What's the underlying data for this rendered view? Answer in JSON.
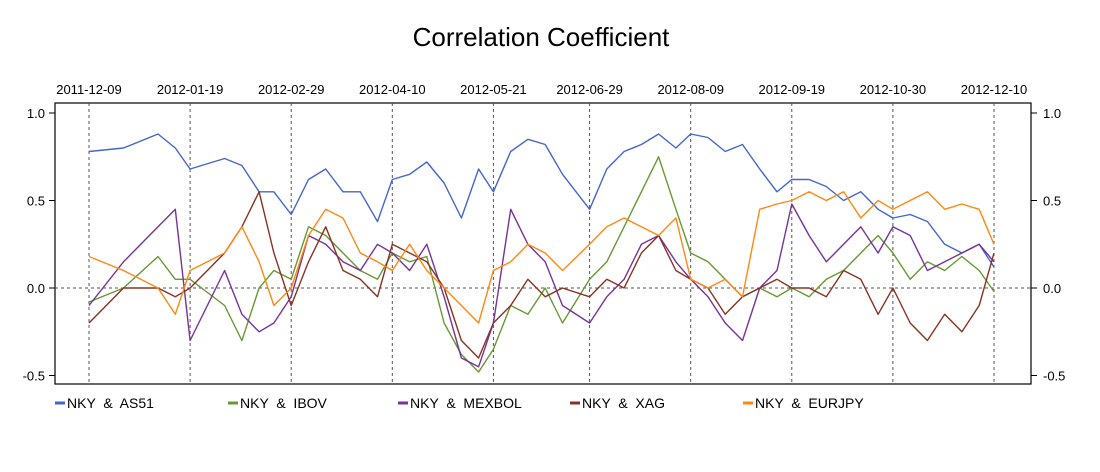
{
  "chart_data": {
    "type": "line",
    "title": "Correlation Coefficient",
    "x_ticks": [
      "2011-12-09",
      "2012-01-19",
      "2012-02-29",
      "2012-04-10",
      "2012-05-21",
      "2012-06-29",
      "2012-08-09",
      "2012-09-19",
      "2012-10-30",
      "2012-12-10"
    ],
    "y_ticks": [
      "1.0",
      "0.5",
      "0.0",
      "-0.5"
    ],
    "xlim": [
      "2011-12-09",
      "2012-12-10"
    ],
    "ylim": [
      -0.55,
      1.03
    ],
    "grid": "dashed vertical lines at date ticks; dashed horizontal line at 0.0",
    "legend_position": "bottom",
    "series": [
      {
        "name": "NKY  &  AS51",
        "color": "#4466cc",
        "points": [
          [
            "2011-12-09",
            0.78
          ],
          [
            "2011-12-23",
            0.8
          ],
          [
            "2012-01-06",
            0.88
          ],
          [
            "2012-01-13",
            0.8
          ],
          [
            "2012-01-19",
            0.68
          ],
          [
            "2012-02-02",
            0.74
          ],
          [
            "2012-02-09",
            0.7
          ],
          [
            "2012-02-16",
            0.55
          ],
          [
            "2012-02-22",
            0.55
          ],
          [
            "2012-02-29",
            0.42
          ],
          [
            "2012-03-07",
            0.62
          ],
          [
            "2012-03-14",
            0.68
          ],
          [
            "2012-03-21",
            0.55
          ],
          [
            "2012-03-28",
            0.55
          ],
          [
            "2012-04-04",
            0.38
          ],
          [
            "2012-04-10",
            0.62
          ],
          [
            "2012-04-17",
            0.65
          ],
          [
            "2012-04-24",
            0.72
          ],
          [
            "2012-05-01",
            0.6
          ],
          [
            "2012-05-08",
            0.4
          ],
          [
            "2012-05-15",
            0.68
          ],
          [
            "2012-05-21",
            0.55
          ],
          [
            "2012-05-28",
            0.78
          ],
          [
            "2012-06-04",
            0.85
          ],
          [
            "2012-06-11",
            0.82
          ],
          [
            "2012-06-18",
            0.65
          ],
          [
            "2012-06-29",
            0.45
          ],
          [
            "2012-07-06",
            0.68
          ],
          [
            "2012-07-13",
            0.78
          ],
          [
            "2012-07-20",
            0.82
          ],
          [
            "2012-07-27",
            0.88
          ],
          [
            "2012-08-03",
            0.8
          ],
          [
            "2012-08-09",
            0.88
          ],
          [
            "2012-08-16",
            0.86
          ],
          [
            "2012-08-23",
            0.78
          ],
          [
            "2012-08-30",
            0.82
          ],
          [
            "2012-09-06",
            0.68
          ],
          [
            "2012-09-13",
            0.55
          ],
          [
            "2012-09-19",
            0.62
          ],
          [
            "2012-09-26",
            0.62
          ],
          [
            "2012-10-03",
            0.58
          ],
          [
            "2012-10-10",
            0.5
          ],
          [
            "2012-10-17",
            0.55
          ],
          [
            "2012-10-24",
            0.45
          ],
          [
            "2012-10-30",
            0.4
          ],
          [
            "2012-11-06",
            0.42
          ],
          [
            "2012-11-13",
            0.38
          ],
          [
            "2012-11-20",
            0.25
          ],
          [
            "2012-11-27",
            0.2
          ],
          [
            "2012-12-04",
            0.25
          ],
          [
            "2012-12-10",
            0.12
          ]
        ]
      },
      {
        "name": "NKY  &  IBOV",
        "color": "#669933",
        "points": [
          [
            "2011-12-09",
            -0.08
          ],
          [
            "2011-12-23",
            0.0
          ],
          [
            "2012-01-06",
            0.18
          ],
          [
            "2012-01-13",
            0.05
          ],
          [
            "2012-01-19",
            0.05
          ],
          [
            "2012-02-02",
            -0.1
          ],
          [
            "2012-02-09",
            -0.3
          ],
          [
            "2012-02-16",
            0.0
          ],
          [
            "2012-02-22",
            0.1
          ],
          [
            "2012-02-29",
            0.05
          ],
          [
            "2012-03-07",
            0.35
          ],
          [
            "2012-03-14",
            0.3
          ],
          [
            "2012-03-21",
            0.2
          ],
          [
            "2012-03-28",
            0.1
          ],
          [
            "2012-04-04",
            0.05
          ],
          [
            "2012-04-10",
            0.2
          ],
          [
            "2012-04-17",
            0.15
          ],
          [
            "2012-04-24",
            0.18
          ],
          [
            "2012-05-01",
            -0.2
          ],
          [
            "2012-05-08",
            -0.38
          ],
          [
            "2012-05-15",
            -0.48
          ],
          [
            "2012-05-21",
            -0.35
          ],
          [
            "2012-05-28",
            -0.1
          ],
          [
            "2012-06-04",
            -0.15
          ],
          [
            "2012-06-11",
            0.0
          ],
          [
            "2012-06-18",
            -0.2
          ],
          [
            "2012-06-29",
            0.05
          ],
          [
            "2012-07-06",
            0.15
          ],
          [
            "2012-07-13",
            0.35
          ],
          [
            "2012-07-20",
            0.55
          ],
          [
            "2012-07-27",
            0.75
          ],
          [
            "2012-08-03",
            0.45
          ],
          [
            "2012-08-09",
            0.2
          ],
          [
            "2012-08-16",
            0.15
          ],
          [
            "2012-08-23",
            0.05
          ],
          [
            "2012-08-30",
            -0.05
          ],
          [
            "2012-09-06",
            0.0
          ],
          [
            "2012-09-13",
            -0.05
          ],
          [
            "2012-09-19",
            0.0
          ],
          [
            "2012-09-26",
            -0.05
          ],
          [
            "2012-10-03",
            0.05
          ],
          [
            "2012-10-10",
            0.1
          ],
          [
            "2012-10-17",
            0.2
          ],
          [
            "2012-10-24",
            0.3
          ],
          [
            "2012-10-30",
            0.2
          ],
          [
            "2012-11-06",
            0.05
          ],
          [
            "2012-11-13",
            0.15
          ],
          [
            "2012-11-20",
            0.1
          ],
          [
            "2012-11-27",
            0.18
          ],
          [
            "2012-12-04",
            0.1
          ],
          [
            "2012-12-10",
            -0.02
          ]
        ]
      },
      {
        "name": "NKY  &  MEXBOL",
        "color": "#773399",
        "points": [
          [
            "2011-12-09",
            -0.1
          ],
          [
            "2011-12-23",
            0.15
          ],
          [
            "2012-01-06",
            0.35
          ],
          [
            "2012-01-13",
            0.45
          ],
          [
            "2012-01-19",
            -0.3
          ],
          [
            "2012-02-02",
            0.1
          ],
          [
            "2012-02-09",
            -0.15
          ],
          [
            "2012-02-16",
            -0.25
          ],
          [
            "2012-02-22",
            -0.2
          ],
          [
            "2012-02-29",
            -0.05
          ],
          [
            "2012-03-07",
            0.3
          ],
          [
            "2012-03-14",
            0.25
          ],
          [
            "2012-03-21",
            0.15
          ],
          [
            "2012-03-28",
            0.1
          ],
          [
            "2012-04-04",
            0.25
          ],
          [
            "2012-04-10",
            0.2
          ],
          [
            "2012-04-17",
            0.1
          ],
          [
            "2012-04-24",
            0.25
          ],
          [
            "2012-05-01",
            -0.05
          ],
          [
            "2012-05-08",
            -0.4
          ],
          [
            "2012-05-15",
            -0.45
          ],
          [
            "2012-05-21",
            -0.2
          ],
          [
            "2012-05-28",
            0.45
          ],
          [
            "2012-06-04",
            0.25
          ],
          [
            "2012-06-11",
            0.15
          ],
          [
            "2012-06-18",
            -0.1
          ],
          [
            "2012-06-29",
            -0.2
          ],
          [
            "2012-07-06",
            -0.05
          ],
          [
            "2012-07-13",
            0.05
          ],
          [
            "2012-07-20",
            0.25
          ],
          [
            "2012-07-27",
            0.3
          ],
          [
            "2012-08-03",
            0.15
          ],
          [
            "2012-08-09",
            0.05
          ],
          [
            "2012-08-16",
            -0.05
          ],
          [
            "2012-08-23",
            -0.2
          ],
          [
            "2012-08-30",
            -0.3
          ],
          [
            "2012-09-06",
            0.0
          ],
          [
            "2012-09-13",
            0.1
          ],
          [
            "2012-09-19",
            0.48
          ],
          [
            "2012-09-26",
            0.3
          ],
          [
            "2012-10-03",
            0.15
          ],
          [
            "2012-10-10",
            0.25
          ],
          [
            "2012-10-17",
            0.35
          ],
          [
            "2012-10-24",
            0.2
          ],
          [
            "2012-10-30",
            0.35
          ],
          [
            "2012-11-06",
            0.3
          ],
          [
            "2012-11-13",
            0.1
          ],
          [
            "2012-11-20",
            0.15
          ],
          [
            "2012-11-27",
            0.2
          ],
          [
            "2012-12-04",
            0.25
          ],
          [
            "2012-12-10",
            0.15
          ]
        ]
      },
      {
        "name": "NKY  &  XAG",
        "color": "#883322",
        "points": [
          [
            "2011-12-09",
            -0.2
          ],
          [
            "2011-12-23",
            0.0
          ],
          [
            "2012-01-06",
            0.0
          ],
          [
            "2012-01-13",
            -0.05
          ],
          [
            "2012-01-19",
            0.0
          ],
          [
            "2012-02-02",
            0.2
          ],
          [
            "2012-02-09",
            0.35
          ],
          [
            "2012-02-16",
            0.55
          ],
          [
            "2012-02-22",
            0.2
          ],
          [
            "2012-02-29",
            -0.1
          ],
          [
            "2012-03-07",
            0.15
          ],
          [
            "2012-03-14",
            0.35
          ],
          [
            "2012-03-21",
            0.1
          ],
          [
            "2012-03-28",
            0.05
          ],
          [
            "2012-04-04",
            -0.05
          ],
          [
            "2012-04-10",
            0.25
          ],
          [
            "2012-04-17",
            0.2
          ],
          [
            "2012-04-24",
            0.15
          ],
          [
            "2012-05-01",
            0.0
          ],
          [
            "2012-05-08",
            -0.3
          ],
          [
            "2012-05-15",
            -0.4
          ],
          [
            "2012-05-21",
            -0.2
          ],
          [
            "2012-05-28",
            -0.1
          ],
          [
            "2012-06-04",
            0.05
          ],
          [
            "2012-06-11",
            -0.05
          ],
          [
            "2012-06-18",
            0.0
          ],
          [
            "2012-06-29",
            -0.05
          ],
          [
            "2012-07-06",
            0.05
          ],
          [
            "2012-07-13",
            0.0
          ],
          [
            "2012-07-20",
            0.2
          ],
          [
            "2012-07-27",
            0.3
          ],
          [
            "2012-08-03",
            0.1
          ],
          [
            "2012-08-09",
            0.05
          ],
          [
            "2012-08-16",
            0.0
          ],
          [
            "2012-08-23",
            -0.15
          ],
          [
            "2012-08-30",
            -0.05
          ],
          [
            "2012-09-06",
            0.0
          ],
          [
            "2012-09-13",
            0.05
          ],
          [
            "2012-09-19",
            0.0
          ],
          [
            "2012-09-26",
            0.0
          ],
          [
            "2012-10-03",
            -0.05
          ],
          [
            "2012-10-10",
            0.1
          ],
          [
            "2012-10-17",
            0.05
          ],
          [
            "2012-10-24",
            -0.15
          ],
          [
            "2012-10-30",
            0.0
          ],
          [
            "2012-11-06",
            -0.2
          ],
          [
            "2012-11-13",
            -0.3
          ],
          [
            "2012-11-20",
            -0.15
          ],
          [
            "2012-11-27",
            -0.25
          ],
          [
            "2012-12-04",
            -0.1
          ],
          [
            "2012-12-10",
            0.2
          ]
        ]
      },
      {
        "name": "NKY  &  EURJPY",
        "color": "#ff8811",
        "points": [
          [
            "2011-12-09",
            0.18
          ],
          [
            "2011-12-23",
            0.1
          ],
          [
            "2012-01-06",
            0.0
          ],
          [
            "2012-01-13",
            -0.15
          ],
          [
            "2012-01-19",
            0.1
          ],
          [
            "2012-02-02",
            0.2
          ],
          [
            "2012-02-09",
            0.35
          ],
          [
            "2012-02-16",
            0.15
          ],
          [
            "2012-02-22",
            -0.1
          ],
          [
            "2012-02-29",
            0.0
          ],
          [
            "2012-03-07",
            0.3
          ],
          [
            "2012-03-14",
            0.45
          ],
          [
            "2012-03-21",
            0.4
          ],
          [
            "2012-03-28",
            0.2
          ],
          [
            "2012-04-04",
            0.15
          ],
          [
            "2012-04-10",
            0.1
          ],
          [
            "2012-04-17",
            0.25
          ],
          [
            "2012-04-24",
            0.1
          ],
          [
            "2012-05-01",
            0.0
          ],
          [
            "2012-05-08",
            -0.1
          ],
          [
            "2012-05-15",
            -0.2
          ],
          [
            "2012-05-21",
            0.1
          ],
          [
            "2012-05-28",
            0.15
          ],
          [
            "2012-06-04",
            0.25
          ],
          [
            "2012-06-11",
            0.2
          ],
          [
            "2012-06-18",
            0.1
          ],
          [
            "2012-06-29",
            0.25
          ],
          [
            "2012-07-06",
            0.35
          ],
          [
            "2012-07-13",
            0.4
          ],
          [
            "2012-07-20",
            0.35
          ],
          [
            "2012-07-27",
            0.3
          ],
          [
            "2012-08-03",
            0.4
          ],
          [
            "2012-08-09",
            0.05
          ],
          [
            "2012-08-16",
            0.0
          ],
          [
            "2012-08-23",
            0.05
          ],
          [
            "2012-08-30",
            -0.05
          ],
          [
            "2012-09-06",
            0.45
          ],
          [
            "2012-09-13",
            0.48
          ],
          [
            "2012-09-19",
            0.5
          ],
          [
            "2012-09-26",
            0.55
          ],
          [
            "2012-10-03",
            0.5
          ],
          [
            "2012-10-10",
            0.55
          ],
          [
            "2012-10-17",
            0.4
          ],
          [
            "2012-10-24",
            0.5
          ],
          [
            "2012-10-30",
            0.45
          ],
          [
            "2012-11-06",
            0.5
          ],
          [
            "2012-11-13",
            0.55
          ],
          [
            "2012-11-20",
            0.45
          ],
          [
            "2012-11-27",
            0.48
          ],
          [
            "2012-12-04",
            0.45
          ],
          [
            "2012-12-10",
            0.25
          ]
        ]
      }
    ]
  }
}
